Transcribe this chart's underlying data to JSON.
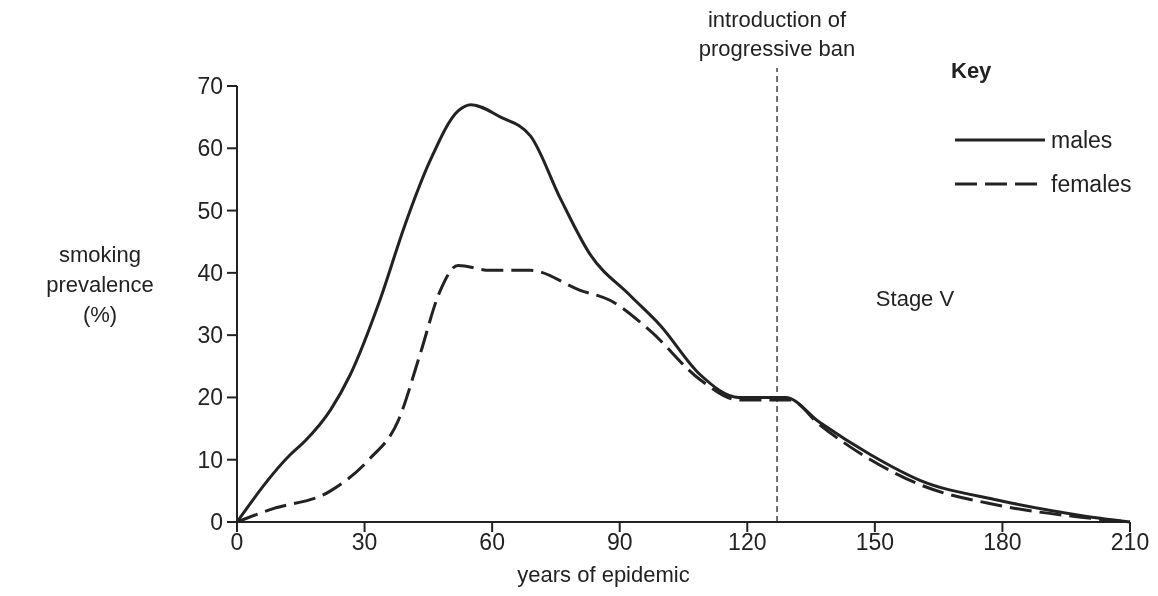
{
  "chart_data": {
    "type": "line",
    "xlabel": "years of epidemic",
    "ylabel": "smoking prevalence (%)",
    "legend_title": "Key",
    "legend": "top right",
    "xlim": [
      0,
      210
    ],
    "xticks": [
      0,
      30,
      60,
      90,
      120,
      150,
      180,
      210
    ],
    "ylim": [
      0,
      70
    ],
    "yticks": [
      0,
      10,
      20,
      30,
      40,
      50,
      60,
      70
    ],
    "series": [
      {
        "name": "males",
        "color": "#222222",
        "line_style": "solid",
        "x": [
          0,
          12.5,
          16,
          22,
          26.6,
          33.6,
          39.5,
          45.4,
          52,
          55,
          62,
          69,
          76,
          83,
          92.4,
          99.5,
          109,
          118,
          125,
          129,
          137,
          149,
          160.6,
          179,
          198,
          210
        ],
        "values": [
          0,
          10.8,
          13,
          18,
          23.6,
          35.6,
          47.7,
          58,
          66,
          67,
          65,
          62,
          52,
          43,
          36.4,
          31.6,
          23.6,
          20,
          20,
          20,
          16,
          10.8,
          6.7,
          3.5,
          1.1,
          0
        ]
      },
      {
        "name": "females",
        "color": "#222222",
        "line_style": "dashed",
        "x": [
          0,
          7.8,
          22,
          31,
          38,
          43,
          47.7,
          52,
          59.5,
          69,
          80.7,
          87.7,
          97,
          109,
          118,
          125,
          130,
          137,
          149,
          160.6,
          179,
          198,
          210
        ],
        "values": [
          0,
          2,
          5,
          10,
          16.4,
          26.8,
          37,
          41.2,
          40.4,
          40.4,
          37.2,
          35.6,
          30.8,
          22.8,
          19.6,
          19.6,
          19.6,
          15.6,
          10,
          6,
          2.7,
          0.8,
          0
        ]
      }
    ],
    "ref_lines": [
      {
        "axis": "x",
        "value": 127,
        "label": "introduction of progressive ban",
        "line_style": "dashed",
        "color": "#444444"
      }
    ],
    "annotations": [
      "Stage V"
    ]
  }
}
